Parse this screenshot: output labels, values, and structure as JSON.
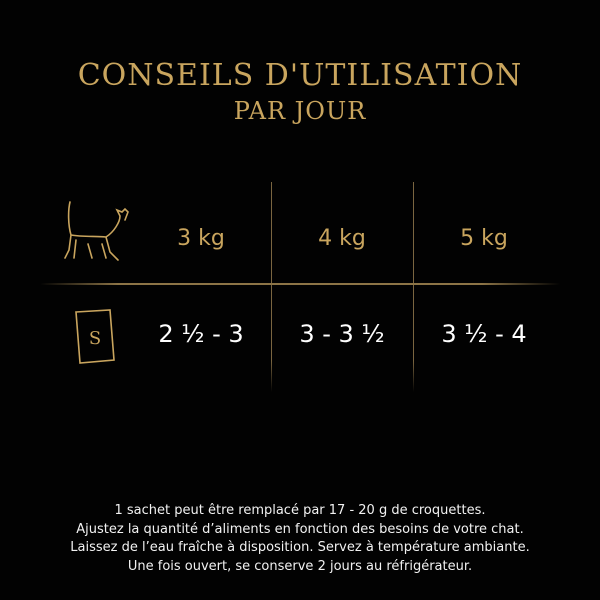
{
  "title": {
    "line1": "CONSEILS D'UTILISATION",
    "line2": "PAR JOUR"
  },
  "colors": {
    "gold": "#c9a55e",
    "background": "#020202",
    "text": "#ffffff"
  },
  "table": {
    "weight_icon": "cat-icon",
    "portion_icon": "sachet-icon",
    "sachet_letter": "S",
    "weights": [
      "3 kg",
      "4 kg",
      "5 kg"
    ],
    "portions": [
      "2 ½ - 3",
      "3 - 3 ½",
      "3 ½ - 4"
    ]
  },
  "notes": [
    "1 sachet peut être remplacé par 17 - 20 g de croquettes.",
    "Ajustez la quantité d’aliments en fonction des besoins de votre chat.",
    "Laissez de l’eau fraîche à disposition. Servez à température ambiante.",
    "Une fois ouvert, se conserve 2 jours au réfrigérateur."
  ]
}
